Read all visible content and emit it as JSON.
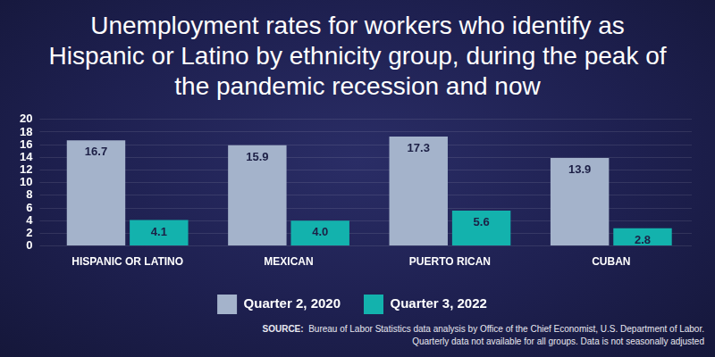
{
  "chart_data": {
    "type": "bar",
    "title": "Unemployment rates for workers who identify as Hispanic or Latino by ethnicity group, during the peak of the pandemic recession and now",
    "annotations": [
      "SOURCE:  Bureau of Labor Statistics data analysis by Office of the Chief Economist, U.S. Department of Labor.",
      "Quarterly data not available for all groups. Data is not seasonally adjusted"
    ],
    "categories": [
      "HISPANIC OR LATINO",
      "MEXICAN",
      "PUERTO RICAN",
      "CUBAN"
    ],
    "series": [
      {
        "name": "Quarter 2, 2020",
        "color": "#a4b3cb",
        "values": [
          16.7,
          15.9,
          17.3,
          13.9
        ],
        "value_labels": [
          "16.7",
          "15.9",
          "17.3",
          "13.9"
        ]
      },
      {
        "name": "Quarter 3, 2022",
        "color": "#13b2ad",
        "values": [
          4.1,
          4.0,
          5.6,
          2.8
        ],
        "value_labels": [
          "4.1",
          "4.0",
          "5.6",
          "2.8"
        ]
      }
    ],
    "ylim": [
      0,
      20
    ],
    "yticks": [
      0,
      2,
      4,
      6,
      8,
      10,
      12,
      14,
      16,
      18,
      20
    ],
    "grid": true,
    "legend": "bottom",
    "data_labels": true
  }
}
